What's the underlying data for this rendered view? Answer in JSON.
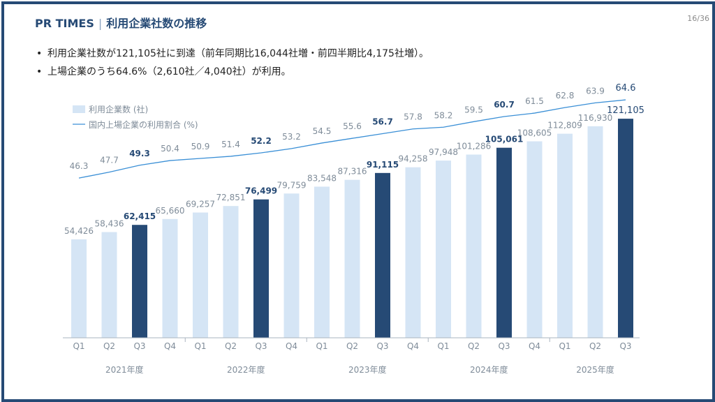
{
  "header": {
    "brand": "PR TIMES",
    "separator": "|",
    "title": "利用企業社数の推移",
    "page": "16/36"
  },
  "bullets": [
    "利用企業社数が121,105社に到達（前年同期比16,044社増・前四半期比4,175社増）。",
    "上場企業のうち64.6%（2,610社／4,040社）が利用。"
  ],
  "colors": {
    "accent": "#264a75",
    "bar_light": "#d5e5f5",
    "bar_dark": "#264a75",
    "line": "#3a8fd6",
    "label_muted": "#7f8c99",
    "axis": "#aab4bf"
  },
  "chart_data": {
    "type": "bar",
    "title": "",
    "legend": [
      {
        "name": "利用企業数 (社)",
        "kind": "bar"
      },
      {
        "name": "国内上場企業の利用割合 (%)",
        "kind": "line"
      }
    ],
    "categories": [
      "Q1",
      "Q2",
      "Q3",
      "Q4",
      "Q1",
      "Q2",
      "Q3",
      "Q4",
      "Q1",
      "Q2",
      "Q3",
      "Q4",
      "Q1",
      "Q2",
      "Q3",
      "Q4",
      "Q1",
      "Q2",
      "Q3"
    ],
    "year_groups": [
      "2021年度",
      "2022年度",
      "2023年度",
      "2024年度",
      "2025年度"
    ],
    "bar_values": [
      54426,
      58436,
      62415,
      65660,
      69257,
      72851,
      76499,
      79759,
      83548,
      87316,
      91115,
      94258,
      97948,
      101286,
      105061,
      108605,
      112809,
      116930,
      121105
    ],
    "bar_labels": [
      "54,426",
      "58,436",
      "62,415",
      "65,660",
      "69,257",
      "72,851",
      "76,499",
      "79,759",
      "83,548",
      "87,316",
      "91,115",
      "94,258",
      "97,948",
      "101,286",
      "105,061",
      "108,605",
      "112,809",
      "116,930",
      "121,105"
    ],
    "highlight": [
      false,
      false,
      true,
      false,
      false,
      false,
      true,
      false,
      false,
      false,
      true,
      false,
      false,
      false,
      true,
      false,
      false,
      false,
      true
    ],
    "line_values": [
      46.3,
      47.7,
      49.3,
      50.4,
      50.9,
      51.4,
      52.2,
      53.2,
      54.5,
      55.6,
      56.7,
      57.8,
      58.2,
      59.5,
      60.7,
      61.5,
      62.8,
      63.9,
      64.6
    ],
    "line_labels": [
      "46.3",
      "47.7",
      "49.3",
      "50.4",
      "50.9",
      "51.4",
      "52.2",
      "53.2",
      "54.5",
      "55.6",
      "56.7",
      "57.8",
      "58.2",
      "59.5",
      "60.7",
      "61.5",
      "62.8",
      "63.9",
      "64.6"
    ],
    "ylim_bar": [
      0,
      125000
    ],
    "ylim_line": [
      30,
      70
    ]
  }
}
